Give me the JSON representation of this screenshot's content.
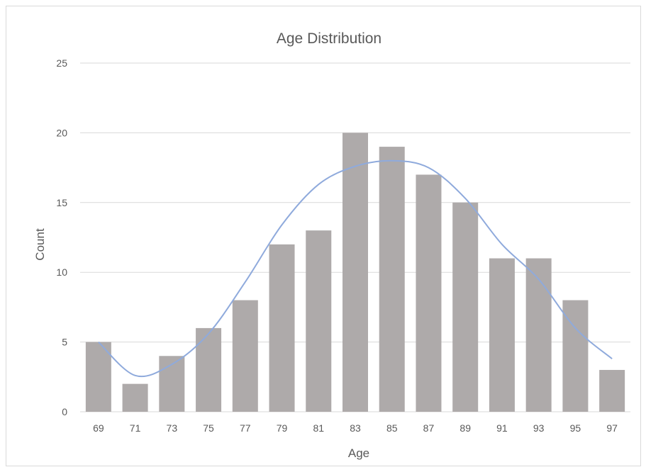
{
  "chart_data": {
    "type": "bar",
    "title": "Age Distribution",
    "xlabel": "Age",
    "ylabel": "Count",
    "categories": [
      "69",
      "71",
      "73",
      "75",
      "77",
      "79",
      "81",
      "83",
      "85",
      "87",
      "89",
      "91",
      "93",
      "95",
      "97"
    ],
    "values": [
      5,
      2,
      4,
      6,
      8,
      12,
      13,
      20,
      19,
      17,
      15,
      11,
      11,
      8,
      3
    ],
    "ylim": [
      0,
      25
    ],
    "yticks": [
      "0",
      "5",
      "10",
      "15",
      "20",
      "25"
    ],
    "grid": true,
    "legend": "none",
    "trendline": {
      "type": "smooth-line",
      "points": [
        5.0,
        2.6,
        3.4,
        5.6,
        9.3,
        13.4,
        16.3,
        17.6,
        18.0,
        17.5,
        15.3,
        12.0,
        9.5,
        6.0,
        3.8
      ]
    },
    "colors": {
      "bar": "#aeaaaa",
      "trend": "#8faadc",
      "grid": "#d9d9d9",
      "text": "#595959"
    }
  }
}
